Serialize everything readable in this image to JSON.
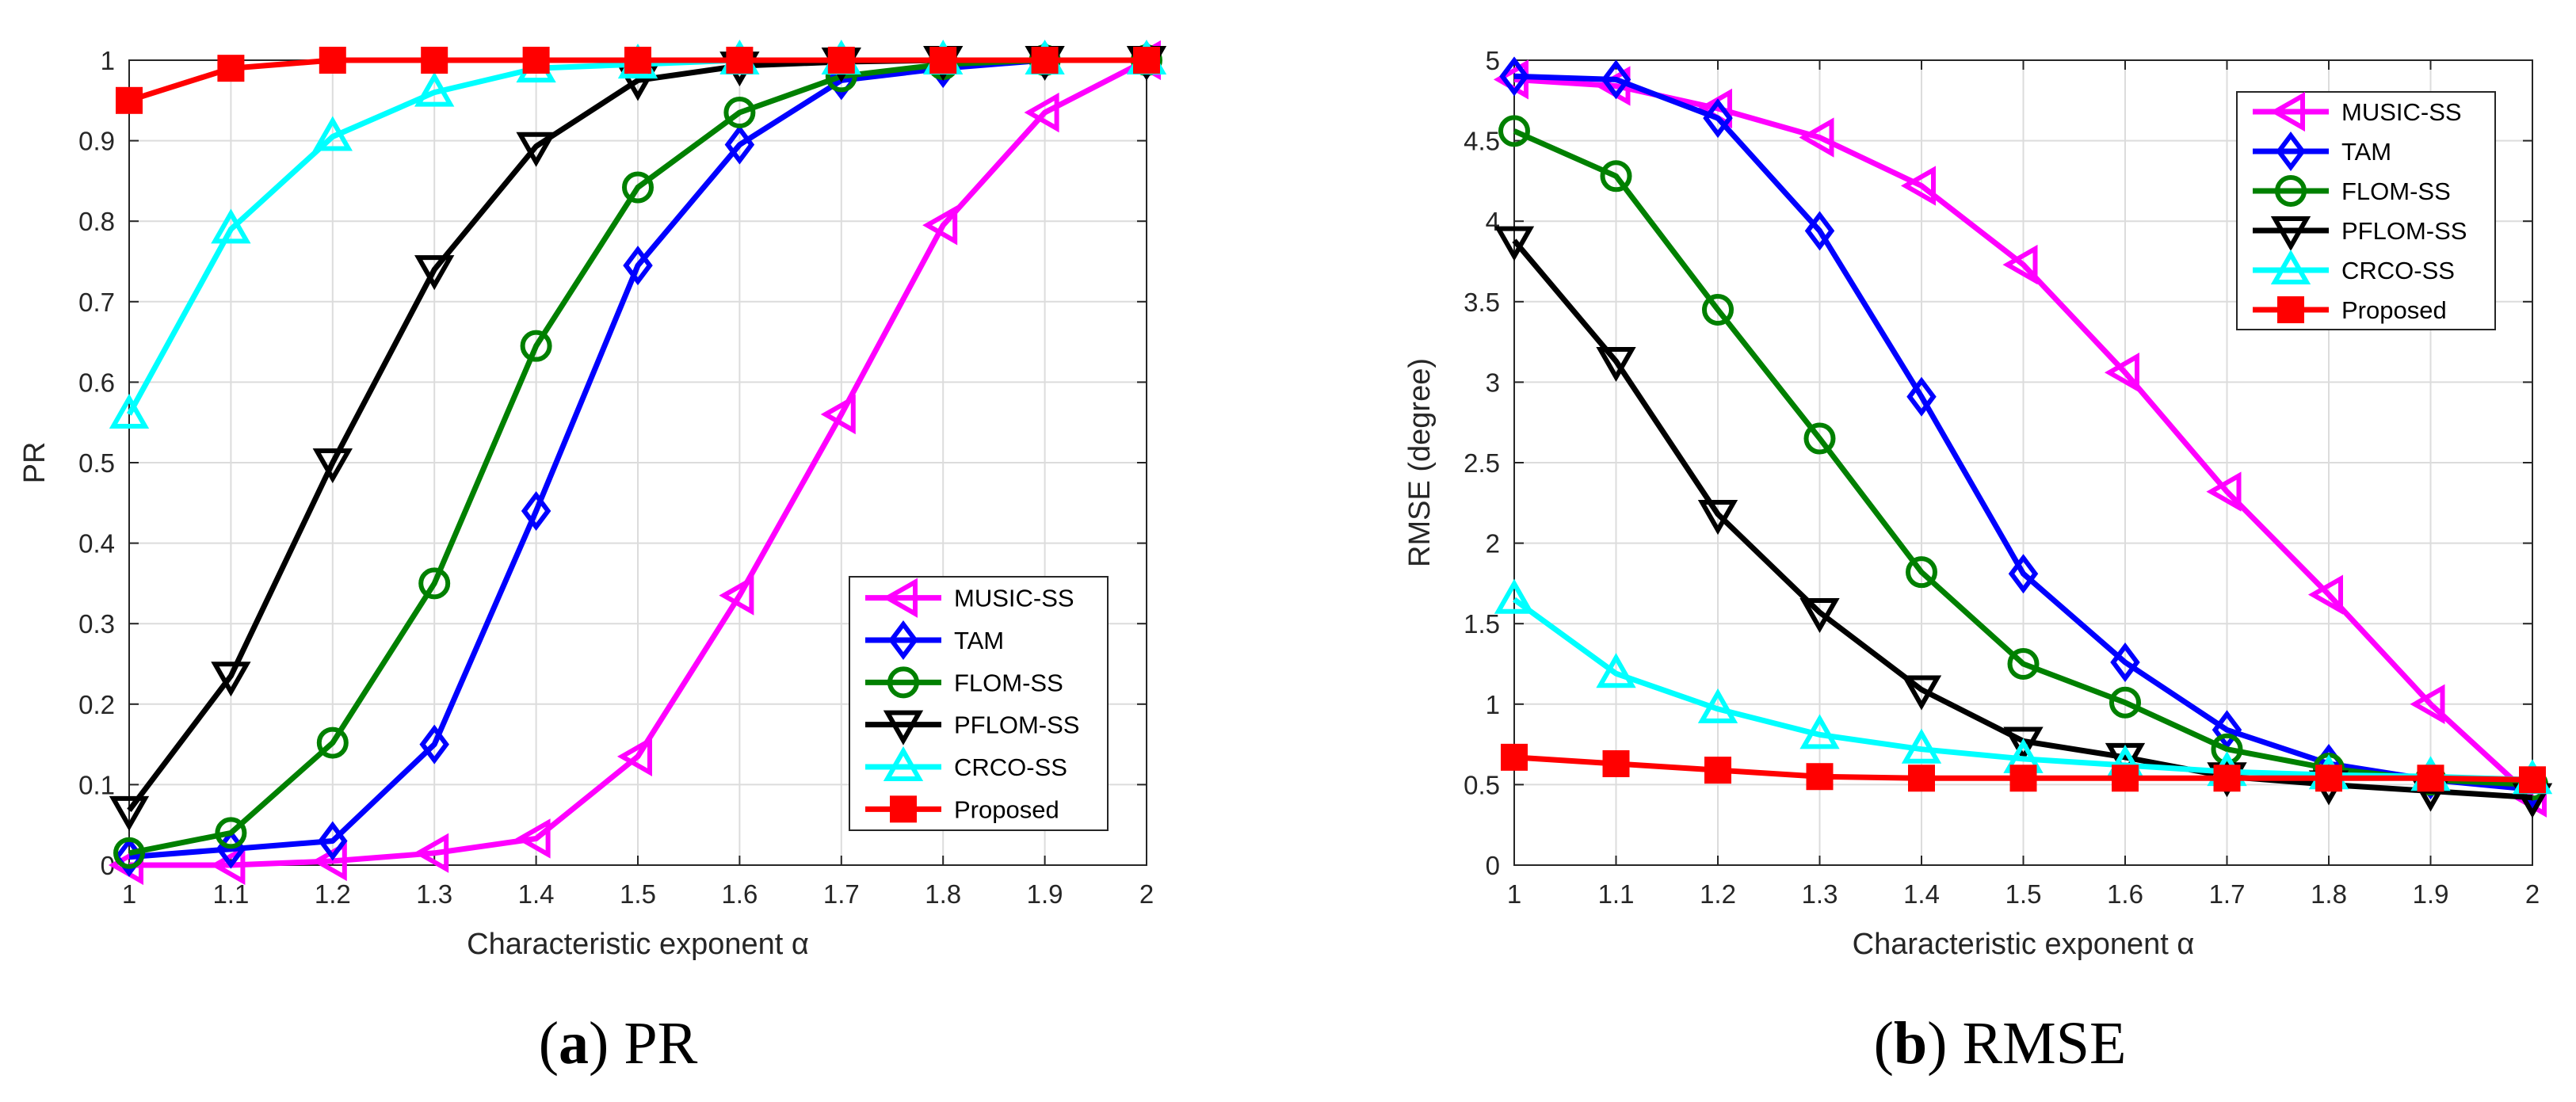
{
  "chart_data": [
    {
      "type": "line",
      "panel_id": "pr",
      "caption_letter": "a",
      "caption_text": "PR",
      "xlabel": "Characteristic exponent α",
      "ylabel": "PR",
      "xlim": [
        1,
        2
      ],
      "ylim": [
        0,
        1
      ],
      "grid": true,
      "legend_location": "bottom-right",
      "x": [
        1,
        1.1,
        1.2,
        1.3,
        1.4,
        1.5,
        1.6,
        1.7,
        1.8,
        1.9,
        2
      ],
      "x_ticks": [
        1,
        1.1,
        1.2,
        1.3,
        1.4,
        1.5,
        1.6,
        1.7,
        1.8,
        1.9,
        2
      ],
      "x_tick_labels": [
        "1",
        "1.1",
        "1.2",
        "1.3",
        "1.4",
        "1.5",
        "1.6",
        "1.7",
        "1.8",
        "1.9",
        "2"
      ],
      "y_ticks": [
        0,
        0.1,
        0.2,
        0.3,
        0.4,
        0.5,
        0.6,
        0.7,
        0.8,
        0.9,
        1
      ],
      "y_tick_labels": [
        "0",
        "0.1",
        "0.2",
        "0.3",
        "0.4",
        "0.5",
        "0.6",
        "0.7",
        "0.8",
        "0.9",
        "1"
      ],
      "series": [
        {
          "name": "MUSIC-SS",
          "color": "#ff00ff",
          "marker": "triangle-left",
          "values": [
            0.0,
            0.0,
            0.005,
            0.015,
            0.033,
            0.135,
            0.335,
            0.56,
            0.795,
            0.935,
            1.0
          ]
        },
        {
          "name": "TAM",
          "color": "#0000ff",
          "marker": "diamond",
          "values": [
            0.01,
            0.02,
            0.03,
            0.15,
            0.44,
            0.745,
            0.895,
            0.975,
            0.99,
            1.0,
            1.0
          ]
        },
        {
          "name": "FLOM-SS",
          "color": "#008000",
          "marker": "circle",
          "values": [
            0.015,
            0.04,
            0.152,
            0.35,
            0.645,
            0.842,
            0.935,
            0.98,
            0.995,
            1.0,
            1.0
          ]
        },
        {
          "name": "PFLOM-SS",
          "color": "#000000",
          "marker": "triangle-down",
          "values": [
            0.068,
            0.235,
            0.5,
            0.74,
            0.893,
            0.975,
            0.993,
            0.998,
            1.0,
            1.0,
            1.0
          ]
        },
        {
          "name": "CRCO-SS",
          "color": "#00ffff",
          "marker": "triangle-up",
          "values": [
            0.56,
            0.79,
            0.905,
            0.96,
            0.99,
            0.995,
            1.0,
            1.0,
            1.0,
            1.0,
            1.0
          ]
        },
        {
          "name": "Proposed",
          "color": "#ff0000",
          "marker": "square",
          "values": [
            0.95,
            0.99,
            1.0,
            1.0,
            1.0,
            1.0,
            1.0,
            1.0,
            1.0,
            1.0,
            1.0
          ]
        }
      ]
    },
    {
      "type": "line",
      "panel_id": "rmse",
      "caption_letter": "b",
      "caption_text": "RMSE",
      "xlabel": "Characteristic exponent α",
      "ylabel": "RMSE (degree)",
      "xlim": [
        1,
        2
      ],
      "ylim": [
        0,
        5
      ],
      "grid": true,
      "legend_location": "top-right",
      "x": [
        1,
        1.1,
        1.2,
        1.3,
        1.4,
        1.5,
        1.6,
        1.7,
        1.8,
        1.9,
        2
      ],
      "x_ticks": [
        1,
        1.1,
        1.2,
        1.3,
        1.4,
        1.5,
        1.6,
        1.7,
        1.8,
        1.9,
        2
      ],
      "x_tick_labels": [
        "1",
        "1.1",
        "1.2",
        "1.3",
        "1.4",
        "1.5",
        "1.6",
        "1.7",
        "1.8",
        "1.9",
        "2"
      ],
      "y_ticks": [
        0,
        0.5,
        1,
        1.5,
        2,
        2.5,
        3,
        3.5,
        4,
        4.5,
        5
      ],
      "y_tick_labels": [
        "0",
        "0.5",
        "1",
        "1.5",
        "2",
        "2.5",
        "3",
        "3.5",
        "4",
        "4.5",
        "5"
      ],
      "series": [
        {
          "name": "MUSIC-SS",
          "color": "#ff00ff",
          "marker": "triangle-left",
          "values": [
            4.88,
            4.84,
            4.7,
            4.52,
            4.22,
            3.73,
            3.06,
            2.32,
            1.68,
            1.0,
            0.42
          ]
        },
        {
          "name": "TAM",
          "color": "#0000ff",
          "marker": "diamond",
          "values": [
            4.9,
            4.88,
            4.64,
            3.94,
            2.91,
            1.81,
            1.26,
            0.84,
            0.63,
            0.53,
            0.47
          ]
        },
        {
          "name": "FLOM-SS",
          "color": "#008000",
          "marker": "circle",
          "values": [
            4.56,
            4.28,
            3.45,
            2.65,
            1.82,
            1.25,
            1.01,
            0.72,
            0.6,
            0.53,
            0.5
          ]
        },
        {
          "name": "PFLOM-SS",
          "color": "#000000",
          "marker": "triangle-down",
          "values": [
            3.88,
            3.13,
            2.18,
            1.57,
            1.09,
            0.77,
            0.67,
            0.55,
            0.5,
            0.46,
            0.42
          ]
        },
        {
          "name": "CRCO-SS",
          "color": "#00ffff",
          "marker": "triangle-up",
          "values": [
            1.65,
            1.19,
            0.97,
            0.81,
            0.72,
            0.66,
            0.62,
            0.58,
            0.56,
            0.55,
            0.53
          ]
        },
        {
          "name": "Proposed",
          "color": "#ff0000",
          "marker": "square",
          "values": [
            0.67,
            0.63,
            0.59,
            0.55,
            0.54,
            0.54,
            0.54,
            0.54,
            0.54,
            0.54,
            0.53
          ]
        }
      ]
    }
  ]
}
